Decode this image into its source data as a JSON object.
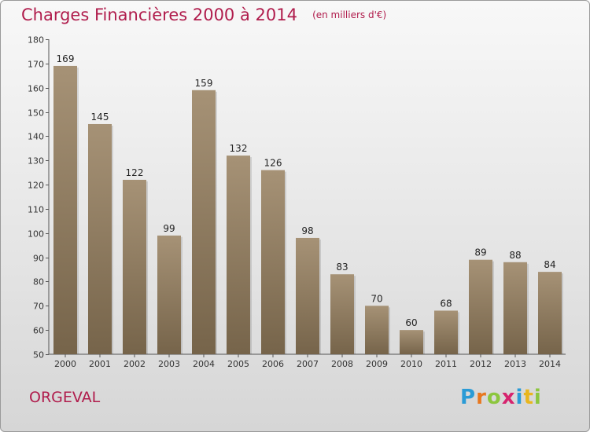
{
  "header": {
    "title": "Charges Financières 2000 à 2014",
    "subtitle": "(en milliers d'€)"
  },
  "commune": "ORGEVAL",
  "logo": {
    "text": "Proxiti",
    "letters": [
      {
        "char": "P",
        "color": "#2a9bd6"
      },
      {
        "char": "r",
        "color": "#e8771e"
      },
      {
        "char": "o",
        "color": "#8cc63e"
      },
      {
        "char": "x",
        "color": "#d6246e"
      },
      {
        "char": "i",
        "color": "#2a9bd6"
      },
      {
        "char": "t",
        "color": "#e8b61e"
      },
      {
        "char": "i",
        "color": "#8cc63e"
      }
    ]
  },
  "chart_data": {
    "type": "bar",
    "title": "Charges Financières 2000 à 2014",
    "subtitle": "(en milliers d'€)",
    "categories": [
      "2000",
      "2001",
      "2002",
      "2003",
      "2004",
      "2005",
      "2006",
      "2007",
      "2008",
      "2009",
      "2010",
      "2011",
      "2012",
      "2013",
      "2014"
    ],
    "values": [
      169,
      145,
      122,
      99,
      159,
      132,
      126,
      98,
      83,
      70,
      60,
      68,
      89,
      88,
      84
    ],
    "ylim": [
      50,
      180
    ],
    "yticks": [
      50,
      60,
      70,
      80,
      90,
      100,
      110,
      120,
      130,
      140,
      150,
      160,
      170,
      180
    ],
    "grid": false,
    "bar_color_top": "#a69276",
    "bar_color_bottom": "#76644a"
  }
}
